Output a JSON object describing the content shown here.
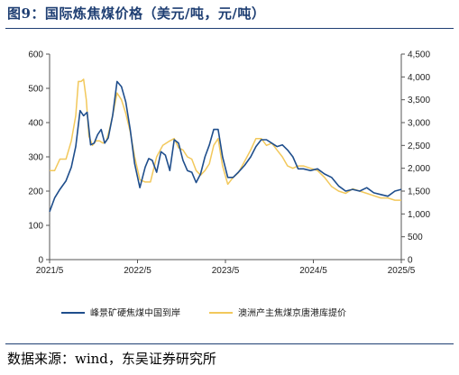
{
  "figure": {
    "title": "图9：国际炼焦煤价格（美元/吨，元/吨）",
    "source": "数据来源：wind，东吴证券研究所"
  },
  "colors": {
    "series1": "#1f4e8c",
    "series2": "#f2c85b",
    "frame": "#1f3f73"
  },
  "chart_data": {
    "type": "line",
    "title": "",
    "xlabel": "",
    "ylabel": "",
    "x_ticks": [
      "2021/5",
      "2022/5",
      "2023/5",
      "2024/5",
      "2025/5"
    ],
    "x_range": [
      2021.333,
      2025.333
    ],
    "y_left": {
      "range": [
        0,
        600
      ],
      "ticks": [
        "0",
        "100",
        "200",
        "300",
        "400",
        "500",
        "600"
      ]
    },
    "y_right": {
      "range": [
        0,
        4500
      ],
      "ticks": [
        "0",
        "500",
        "1,000",
        "1,500",
        "2,000",
        "2,500",
        "3,000",
        "3,500",
        "4,000",
        "4,500"
      ]
    },
    "legend_position": "bottom",
    "grid": false,
    "series": [
      {
        "name": "峰景矿硬焦煤中国到岸",
        "axis": "left",
        "x": [
          2021.333,
          2021.39,
          2021.45,
          2021.52,
          2021.58,
          2021.63,
          2021.68,
          2021.72,
          2021.76,
          2021.8,
          2021.84,
          2021.88,
          2021.92,
          2021.96,
          2022.0,
          2022.05,
          2022.1,
          2022.15,
          2022.2,
          2022.25,
          2022.3,
          2022.36,
          2022.42,
          2022.46,
          2022.5,
          2022.55,
          2022.6,
          2022.65,
          2022.7,
          2022.75,
          2022.8,
          2022.85,
          2022.9,
          2022.95,
          2023.0,
          2023.05,
          2023.1,
          2023.15,
          2023.2,
          2023.25,
          2023.3,
          2023.36,
          2023.42,
          2023.48,
          2023.55,
          2023.62,
          2023.68,
          2023.74,
          2023.8,
          2023.86,
          2023.92,
          2023.98,
          2024.04,
          2024.1,
          2024.16,
          2024.22,
          2024.3,
          2024.38,
          2024.46,
          2024.54,
          2024.62,
          2024.7,
          2024.78,
          2024.86,
          2024.94,
          2025.02,
          2025.1,
          2025.18,
          2025.26,
          2025.333
        ],
        "y": [
          140,
          180,
          205,
          230,
          270,
          330,
          435,
          420,
          430,
          335,
          340,
          365,
          380,
          340,
          355,
          420,
          520,
          505,
          460,
          380,
          280,
          210,
          270,
          295,
          290,
          255,
          315,
          305,
          260,
          350,
          340,
          290,
          260,
          255,
          225,
          250,
          300,
          335,
          380,
          380,
          300,
          240,
          240,
          255,
          275,
          300,
          330,
          350,
          350,
          340,
          330,
          335,
          320,
          300,
          265,
          265,
          260,
          265,
          250,
          240,
          215,
          200,
          205,
          200,
          210,
          195,
          190,
          185,
          200,
          205
        ]
      },
      {
        "name": "澳洲产主焦煤京唐港库提价",
        "axis": "right",
        "x": [
          2021.333,
          2021.39,
          2021.45,
          2021.52,
          2021.58,
          2021.63,
          2021.66,
          2021.69,
          2021.72,
          2021.75,
          2021.78,
          2021.82,
          2021.86,
          2021.9,
          2021.94,
          2021.98,
          2022.02,
          2022.06,
          2022.1,
          2022.15,
          2022.2,
          2022.25,
          2022.3,
          2022.36,
          2022.42,
          2022.48,
          2022.55,
          2022.62,
          2022.7,
          2022.75,
          2022.8,
          2022.85,
          2022.9,
          2022.95,
          2023.0,
          2023.05,
          2023.1,
          2023.15,
          2023.2,
          2023.25,
          2023.3,
          2023.36,
          2023.42,
          2023.48,
          2023.55,
          2023.62,
          2023.68,
          2023.74,
          2023.8,
          2023.86,
          2023.92,
          2023.98,
          2024.04,
          2024.1,
          2024.16,
          2024.22,
          2024.3,
          2024.38,
          2024.46,
          2024.54,
          2024.62,
          2024.7,
          2024.78,
          2024.86,
          2024.94,
          2025.02,
          2025.1,
          2025.18,
          2025.26,
          2025.333
        ],
        "y": [
          1950,
          1950,
          2200,
          2200,
          2600,
          3150,
          3900,
          3900,
          3950,
          3500,
          2700,
          2500,
          2600,
          2600,
          2550,
          2600,
          2900,
          3250,
          3650,
          3500,
          3200,
          2800,
          2250,
          1750,
          1700,
          1700,
          2250,
          2500,
          2600,
          2650,
          2450,
          2400,
          2250,
          2200,
          1950,
          1850,
          1950,
          2100,
          2500,
          2650,
          2050,
          1650,
          1800,
          1900,
          2150,
          2400,
          2650,
          2650,
          2500,
          2550,
          2400,
          2250,
          2050,
          2000,
          2050,
          2050,
          2000,
          1950,
          1800,
          1600,
          1500,
          1450,
          1550,
          1500,
          1450,
          1400,
          1350,
          1350,
          1300,
          1300
        ]
      }
    ]
  }
}
